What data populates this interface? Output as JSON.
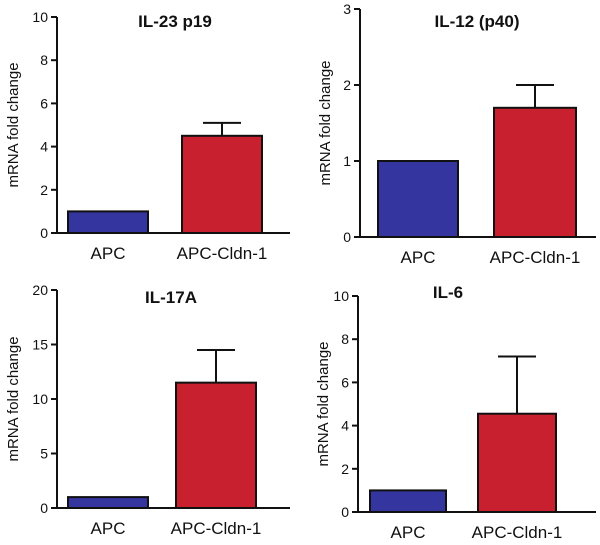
{
  "chart_data": [
    {
      "type": "bar",
      "title": "IL-23 p19",
      "ylabel": "mRNA fold change",
      "xlabel": "",
      "categories": [
        "APC",
        "APC-Cldn-1"
      ],
      "values": [
        1,
        4.5
      ],
      "error_upper": [
        0,
        0.6
      ],
      "ylim": [
        0,
        10
      ],
      "yticks": [
        0,
        2,
        4,
        6,
        8,
        10
      ],
      "colors": [
        "#3535a0",
        "#c8202f"
      ]
    },
    {
      "type": "bar",
      "title": "IL-12 (p40)",
      "ylabel": "mRNA fold change",
      "xlabel": "",
      "categories": [
        "APC",
        "APC-Cldn-1"
      ],
      "values": [
        1,
        1.7
      ],
      "error_upper": [
        0,
        0.3
      ],
      "ylim": [
        0,
        3
      ],
      "yticks": [
        0,
        1,
        2,
        3
      ],
      "colors": [
        "#3535a0",
        "#c8202f"
      ]
    },
    {
      "type": "bar",
      "title": "IL-17A",
      "ylabel": "mRNA fold change",
      "xlabel": "",
      "categories": [
        "APC",
        "APC-Cldn-1"
      ],
      "values": [
        1,
        11.5
      ],
      "error_upper": [
        0,
        3.0
      ],
      "ylim": [
        0,
        20
      ],
      "yticks": [
        0,
        5,
        10,
        15,
        20
      ],
      "colors": [
        "#3535a0",
        "#c8202f"
      ]
    },
    {
      "type": "bar",
      "title": "IL-6",
      "ylabel": "mRNA fold change",
      "xlabel": "",
      "categories": [
        "APC",
        "APC-Cldn-1"
      ],
      "values": [
        1,
        4.55
      ],
      "error_upper": [
        0,
        2.65
      ],
      "ylim": [
        0,
        10
      ],
      "yticks": [
        0,
        2,
        4,
        6,
        8,
        10
      ],
      "colors": [
        "#3535a0",
        "#c8202f"
      ]
    }
  ]
}
